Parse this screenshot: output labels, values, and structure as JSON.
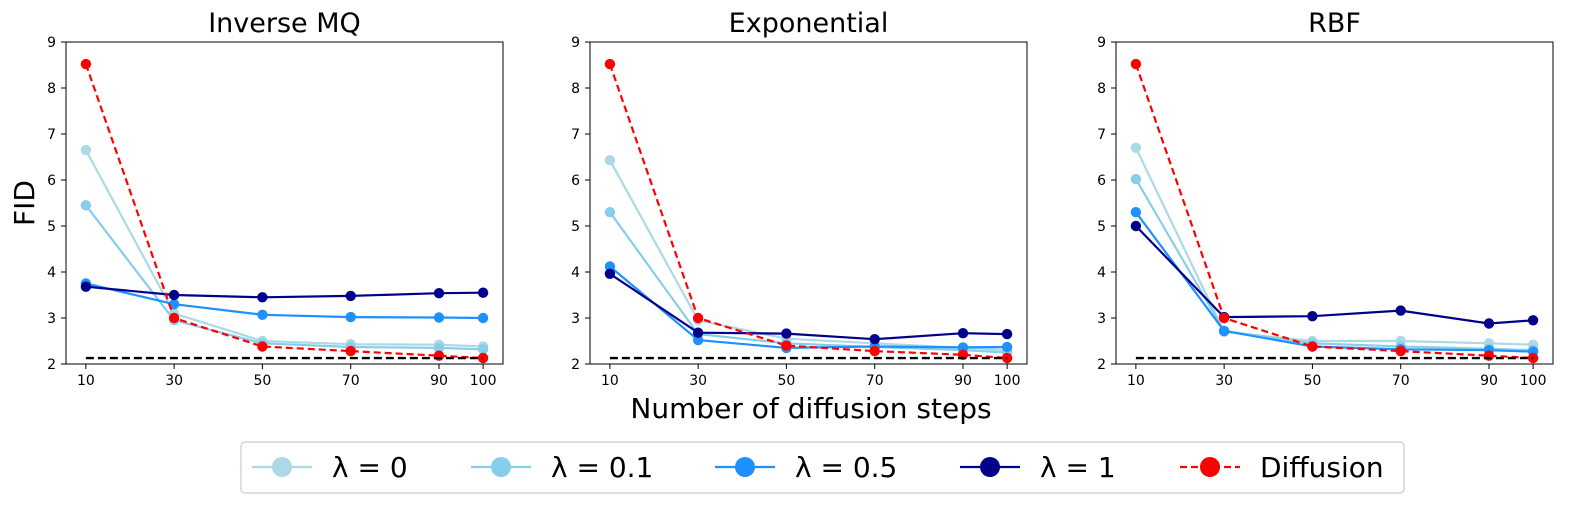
{
  "chart_data": {
    "type": "line",
    "ylabel": "FID",
    "xlabel": "Number of diffusion steps",
    "x": [
      10,
      30,
      50,
      70,
      90,
      100
    ],
    "x_tick_labels": [
      "10",
      "30",
      "50",
      "70",
      "90",
      "100"
    ],
    "y_ticks": [
      2,
      3,
      4,
      5,
      6,
      7,
      8,
      9
    ],
    "y_tick_labels": [
      "2",
      "3",
      "4",
      "5",
      "6",
      "7",
      "8",
      "9"
    ],
    "ylim": [
      2,
      9
    ],
    "xlim": [
      5.5,
      104.5
    ],
    "baseline": {
      "value": 2.13,
      "x_range": [
        10,
        100
      ],
      "color": "#000000"
    },
    "legend": [
      {
        "label": "λ = 0",
        "color": "#add8e6",
        "dashed": false
      },
      {
        "label": "λ = 0.1",
        "color": "#87ceeb",
        "dashed": false
      },
      {
        "label": "λ = 0.5",
        "color": "#1e90ff",
        "dashed": false
      },
      {
        "label": "λ = 1",
        "color": "#00008b",
        "dashed": false
      },
      {
        "label": "Diffusion",
        "color": "#ff0000",
        "dashed": true
      }
    ],
    "panels": [
      {
        "title": "Inverse MQ",
        "series": [
          {
            "name": "λ = 0",
            "values": [
              6.65,
              3.1,
              2.5,
              2.43,
              2.42,
              2.38
            ]
          },
          {
            "name": "λ = 0.1",
            "values": [
              5.45,
              2.95,
              2.45,
              2.37,
              2.35,
              2.32
            ]
          },
          {
            "name": "λ = 0.5",
            "values": [
              3.75,
              3.3,
              3.07,
              3.02,
              3.01,
              3.0
            ]
          },
          {
            "name": "λ = 1",
            "values": [
              3.68,
              3.5,
              3.45,
              3.48,
              3.54,
              3.55
            ]
          },
          {
            "name": "Diffusion",
            "values": [
              8.52,
              3.0,
              2.38,
              2.28,
              2.18,
              2.13
            ]
          }
        ]
      },
      {
        "title": "Exponential",
        "series": [
          {
            "name": "λ = 0",
            "values": [
              6.43,
              2.95,
              2.55,
              2.45,
              2.35,
              2.3
            ]
          },
          {
            "name": "λ = 0.1",
            "values": [
              5.3,
              2.65,
              2.45,
              2.37,
              2.3,
              2.25
            ]
          },
          {
            "name": "λ = 0.5",
            "values": [
              4.12,
              2.52,
              2.35,
              2.38,
              2.36,
              2.37
            ]
          },
          {
            "name": "λ = 1",
            "values": [
              3.96,
              2.68,
              2.66,
              2.54,
              2.67,
              2.65
            ]
          },
          {
            "name": "Diffusion",
            "values": [
              8.52,
              3.0,
              2.4,
              2.28,
              2.2,
              2.13
            ]
          }
        ]
      },
      {
        "title": "RBF",
        "series": [
          {
            "name": "λ = 0",
            "values": [
              6.7,
              2.7,
              2.5,
              2.5,
              2.45,
              2.42
            ]
          },
          {
            "name": "λ = 0.1",
            "values": [
              6.02,
              2.72,
              2.45,
              2.38,
              2.33,
              2.3
            ]
          },
          {
            "name": "λ = 0.5",
            "values": [
              5.3,
              2.72,
              2.38,
              2.32,
              2.3,
              2.27
            ]
          },
          {
            "name": "λ = 1",
            "values": [
              5.0,
              3.02,
              3.04,
              3.16,
              2.88,
              2.95
            ]
          },
          {
            "name": "Diffusion",
            "values": [
              8.52,
              3.0,
              2.38,
              2.28,
              2.18,
              2.13
            ]
          }
        ]
      }
    ]
  }
}
